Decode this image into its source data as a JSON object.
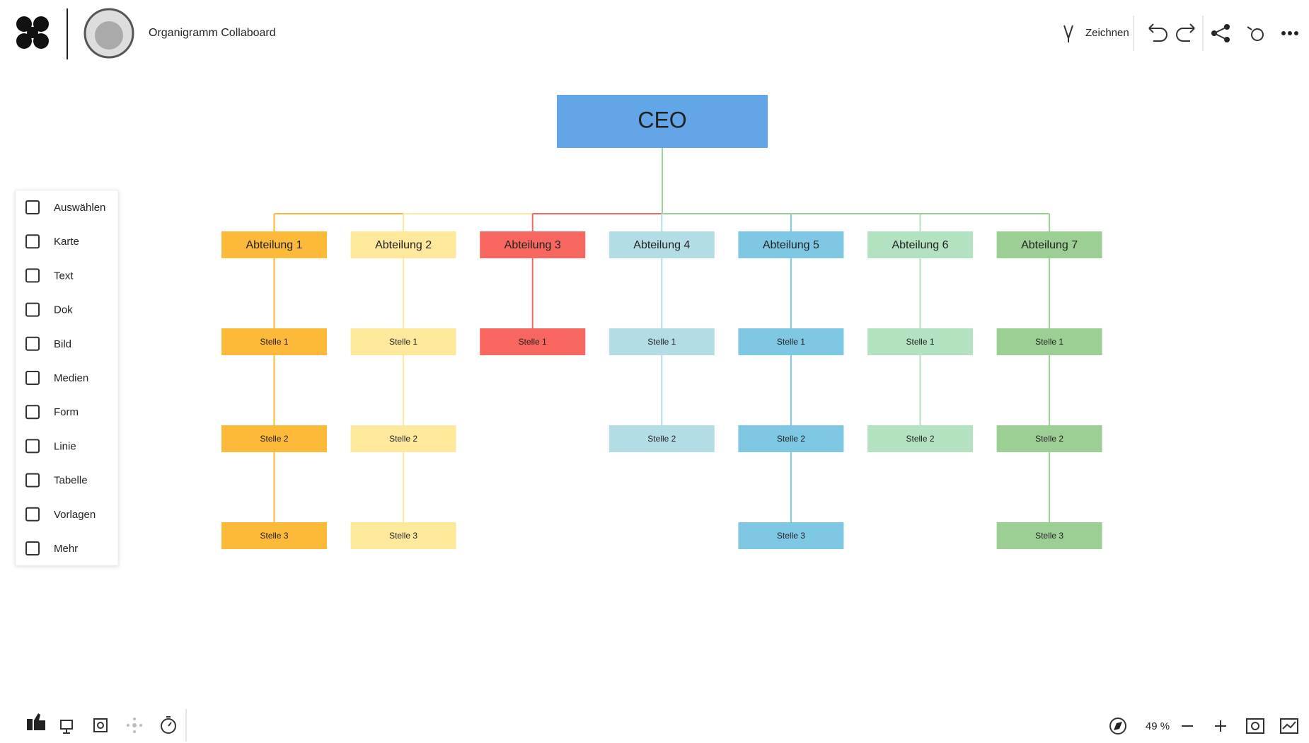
{
  "header": {
    "title": "Organigramm Collaboard",
    "draw_label": "Zeichnen"
  },
  "sidebar": {
    "tools": [
      "Auswählen",
      "Karte",
      "Text",
      "Dok",
      "Bild",
      "Medien",
      "Form",
      "Linie",
      "Tabelle",
      "Vorlagen",
      "Mehr"
    ]
  },
  "footer": {
    "zoom": "49 %"
  },
  "board": {
    "root": "CEO",
    "root_color": "#62a6e8",
    "root_line_color": "#9ccf93",
    "departments": [
      {
        "name": "Abteilung 1",
        "color": "#fdb93a",
        "positions": [
          "Stelle 1",
          "Stelle 2",
          "Stelle 3"
        ]
      },
      {
        "name": "Abteilung 2",
        "color": "#fde89c",
        "positions": [
          "Stelle 1",
          "Stelle 2",
          "Stelle 3"
        ]
      },
      {
        "name": "Abteilung 3",
        "color": "#f7675f",
        "positions": [
          "Stelle 1"
        ]
      },
      {
        "name": "Abteilung 4",
        "color": "#b3dde5",
        "positions": [
          "Stelle 1",
          "Stelle 2"
        ]
      },
      {
        "name": "Abteilung 5",
        "color": "#7ec8e3",
        "positions": [
          "Stelle 1",
          "Stelle 2",
          "Stelle 3"
        ]
      },
      {
        "name": "Abteilung 6",
        "color": "#b2e2c0",
        "positions": [
          "Stelle 1",
          "Stelle 2"
        ]
      },
      {
        "name": "Abteilung 7",
        "color": "#9ccf93",
        "positions": [
          "Stelle 1",
          "Stelle 2",
          "Stelle 3"
        ]
      }
    ]
  }
}
